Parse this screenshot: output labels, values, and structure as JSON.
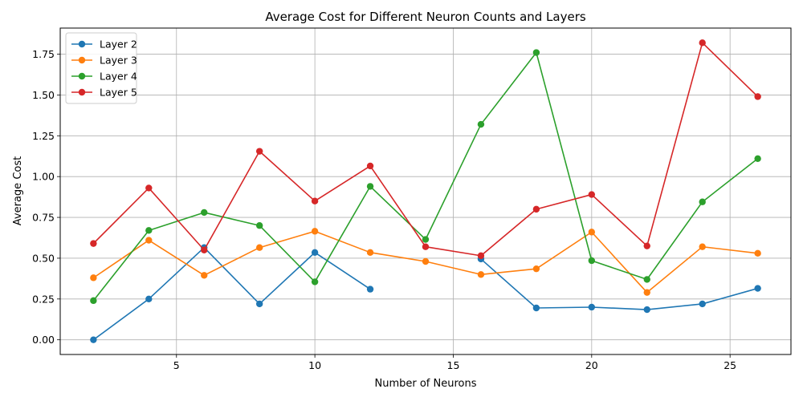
{
  "chart_data": {
    "type": "line",
    "title": "Average Cost for Different Neuron Counts and Layers",
    "xlabel": "Number of Neurons",
    "ylabel": "Average Cost",
    "xlim": [
      0.8,
      27.2
    ],
    "ylim": [
      -0.09,
      1.91
    ],
    "xticks": [
      5,
      10,
      15,
      20,
      25
    ],
    "yticks": [
      0.0,
      0.25,
      0.5,
      0.75,
      1.0,
      1.25,
      1.5,
      1.75
    ],
    "ytick_labels": [
      "0.00",
      "0.25",
      "0.50",
      "0.75",
      "1.00",
      "1.25",
      "1.50",
      "1.75"
    ],
    "grid": true,
    "legend_position": "top-left",
    "series": [
      {
        "name": "Layer 2",
        "color": "#1f77b4",
        "segments": [
          [
            [
              2,
              0.0
            ],
            [
              4,
              0.25
            ],
            [
              6,
              0.565
            ],
            [
              8,
              0.22
            ],
            [
              10,
              0.535
            ],
            [
              12,
              0.31
            ]
          ],
          [
            [
              16,
              0.495
            ],
            [
              18,
              0.195
            ],
            [
              20,
              0.2
            ],
            [
              22,
              0.185
            ],
            [
              24,
              0.22
            ],
            [
              26,
              0.315
            ]
          ]
        ]
      },
      {
        "name": "Layer 3",
        "color": "#ff7f0e",
        "segments": [
          [
            [
              2,
              0.38
            ],
            [
              4,
              0.61
            ],
            [
              6,
              0.395
            ],
            [
              8,
              0.565
            ],
            [
              10,
              0.665
            ],
            [
              12,
              0.535
            ],
            [
              14,
              0.48
            ],
            [
              16,
              0.4
            ],
            [
              18,
              0.435
            ],
            [
              20,
              0.66
            ],
            [
              22,
              0.29
            ],
            [
              24,
              0.57
            ],
            [
              26,
              0.53
            ]
          ]
        ]
      },
      {
        "name": "Layer 4",
        "color": "#2ca02c",
        "segments": [
          [
            [
              2,
              0.24
            ],
            [
              4,
              0.67
            ],
            [
              6,
              0.78
            ],
            [
              8,
              0.7
            ],
            [
              10,
              0.355
            ],
            [
              12,
              0.94
            ],
            [
              14,
              0.615
            ],
            [
              16,
              1.32
            ],
            [
              18,
              1.76
            ],
            [
              20,
              0.485
            ],
            [
              22,
              0.37
            ],
            [
              24,
              0.845
            ],
            [
              26,
              1.11
            ]
          ]
        ]
      },
      {
        "name": "Layer 5",
        "color": "#d62728",
        "segments": [
          [
            [
              2,
              0.59
            ],
            [
              4,
              0.93
            ],
            [
              6,
              0.55
            ],
            [
              8,
              1.155
            ],
            [
              10,
              0.85
            ],
            [
              12,
              1.065
            ],
            [
              14,
              0.57
            ],
            [
              16,
              0.515
            ],
            [
              18,
              0.8
            ],
            [
              20,
              0.89
            ],
            [
              22,
              0.575
            ],
            [
              24,
              1.82
            ],
            [
              26,
              1.49
            ]
          ]
        ]
      }
    ]
  }
}
